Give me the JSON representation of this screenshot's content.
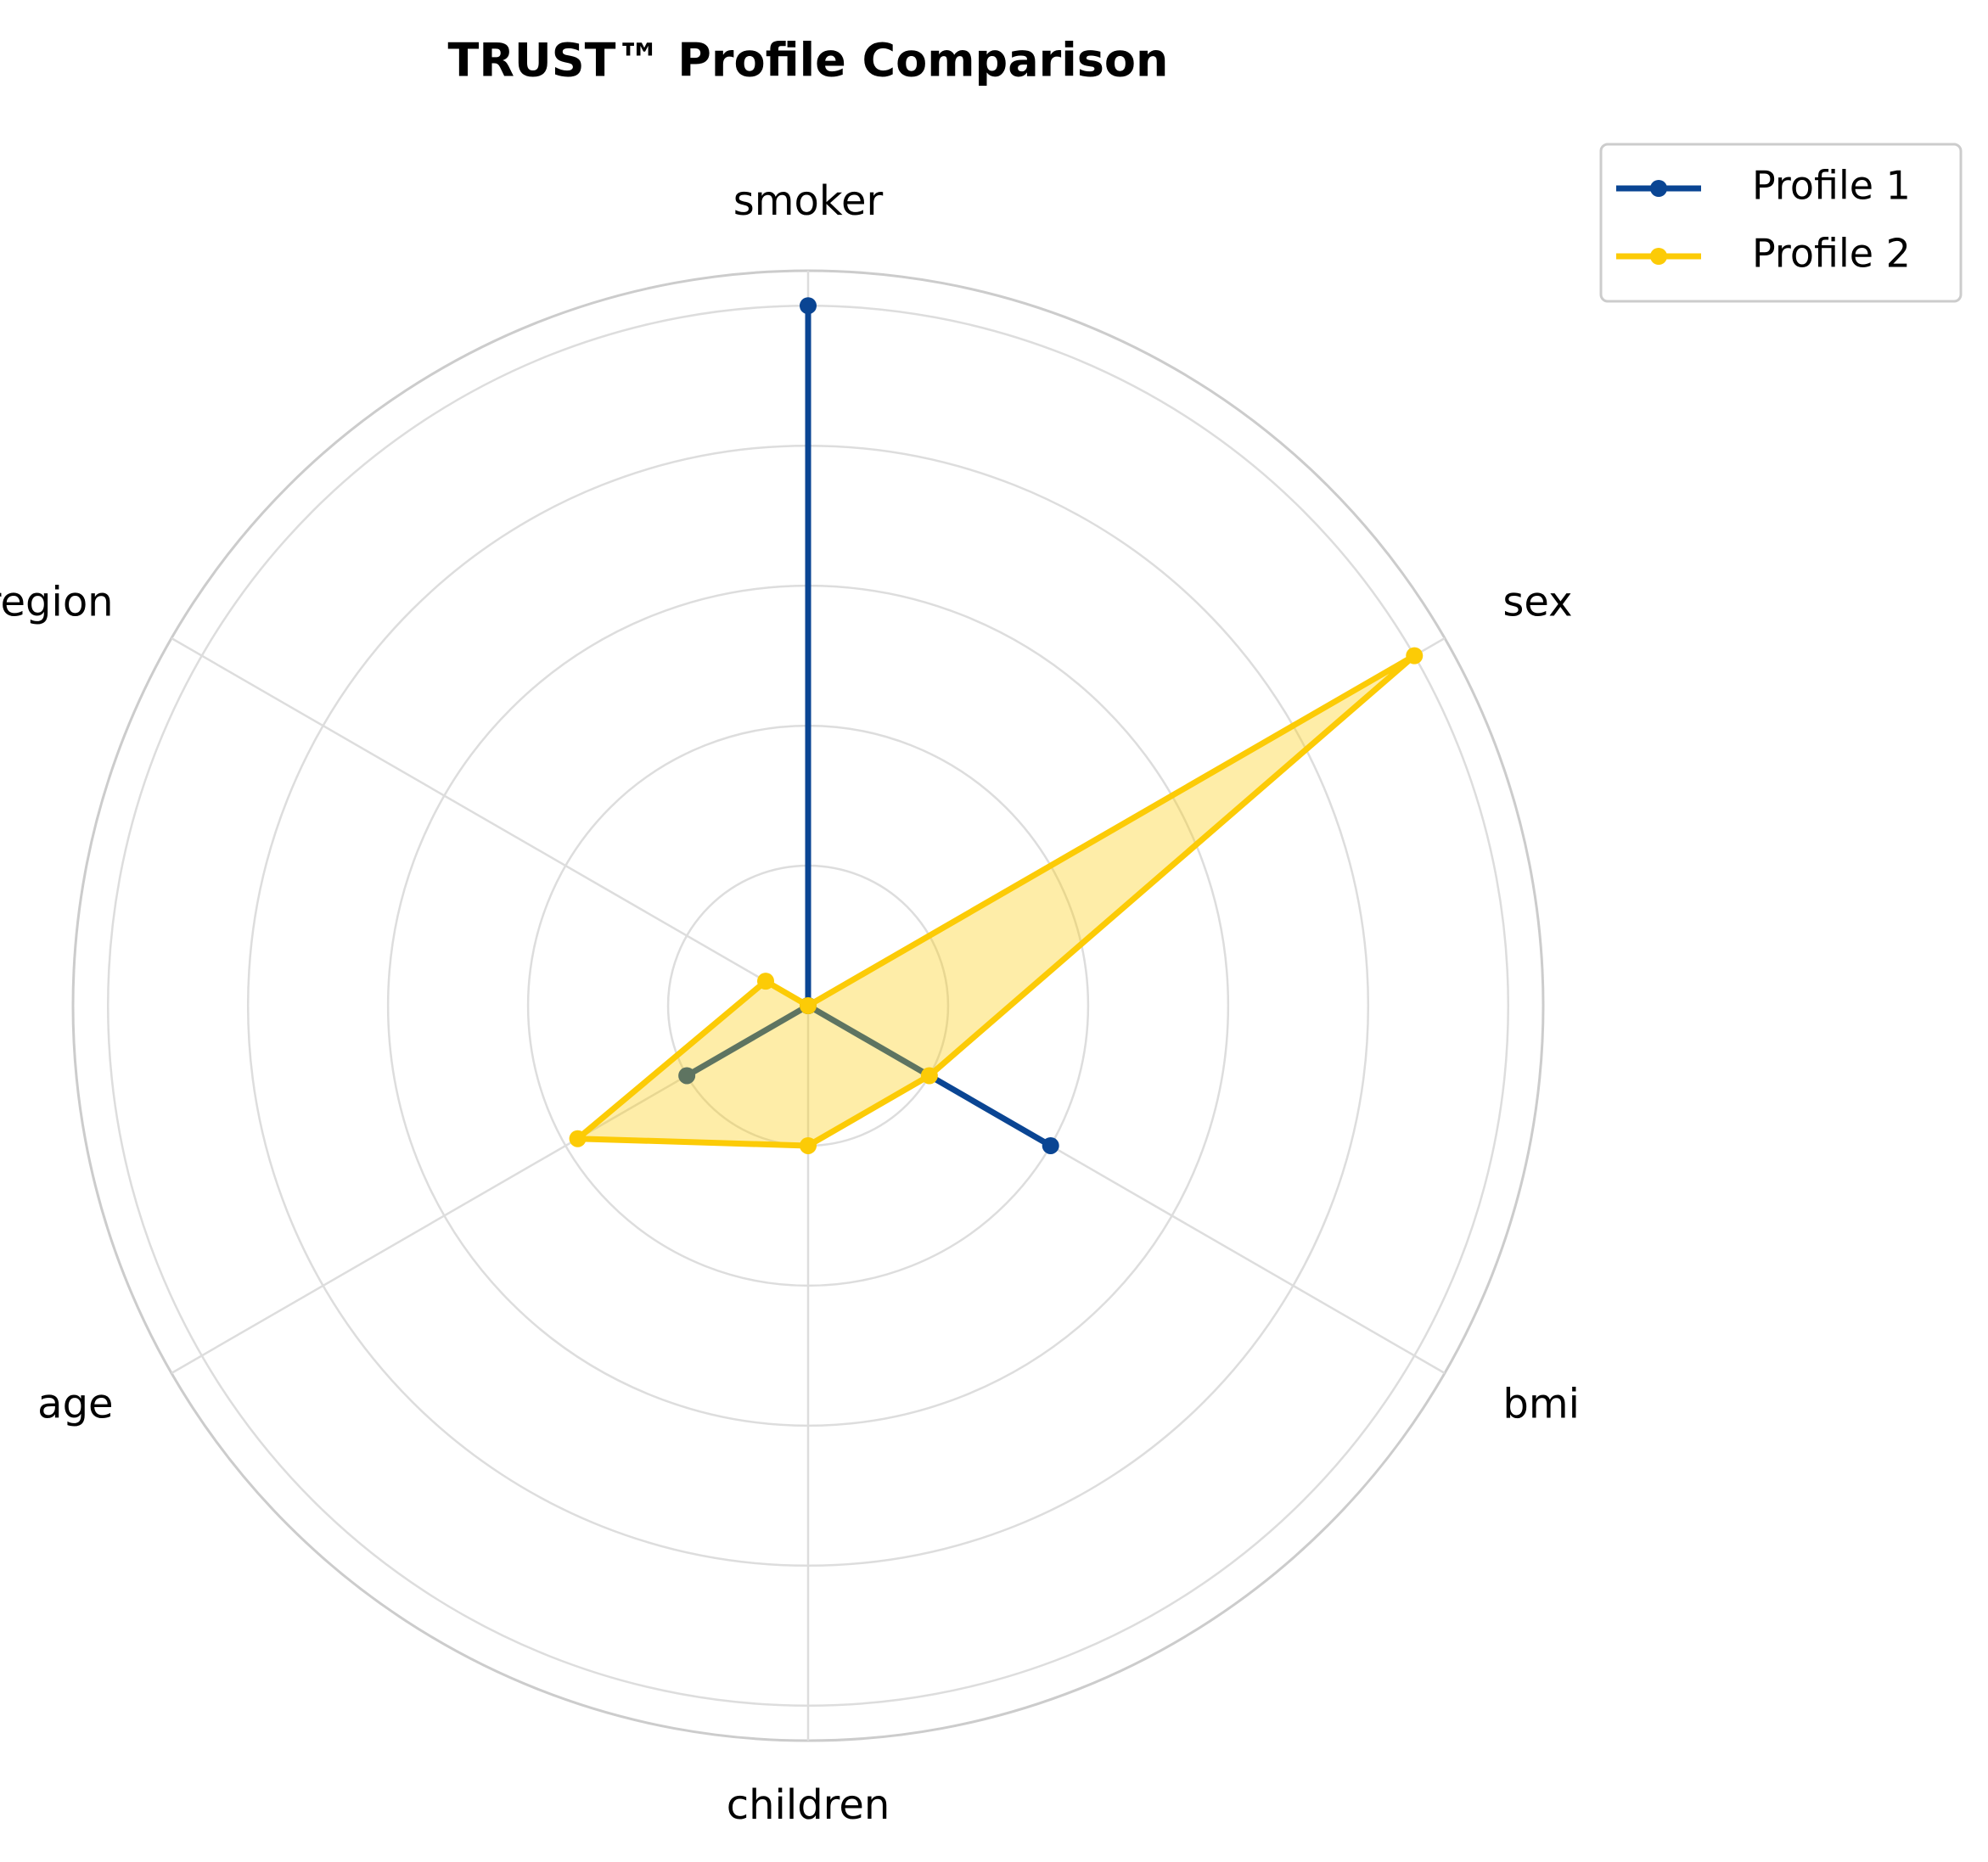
{
  "chart_data": {
    "type": "radar",
    "title": "TRUST™ Profile Comparison",
    "categories": [
      "smoker",
      "sex",
      "bmi",
      "children",
      "age",
      "region"
    ],
    "series": [
      {
        "name": "Profile 1",
        "color": "#0a4593",
        "values": [
          1.0,
          0,
          0.4,
          0,
          0.2,
          0
        ]
      },
      {
        "name": "Profile 2",
        "color": "#fccb06",
        "values": [
          0,
          1.0,
          0.2,
          0.2,
          0.38,
          0.07
        ]
      }
    ],
    "ylim": [
      0,
      1.05
    ],
    "yticks": [
      0.2,
      0.4,
      0.6,
      0.8,
      1.0
    ],
    "grid": true,
    "legend": "upper right"
  }
}
